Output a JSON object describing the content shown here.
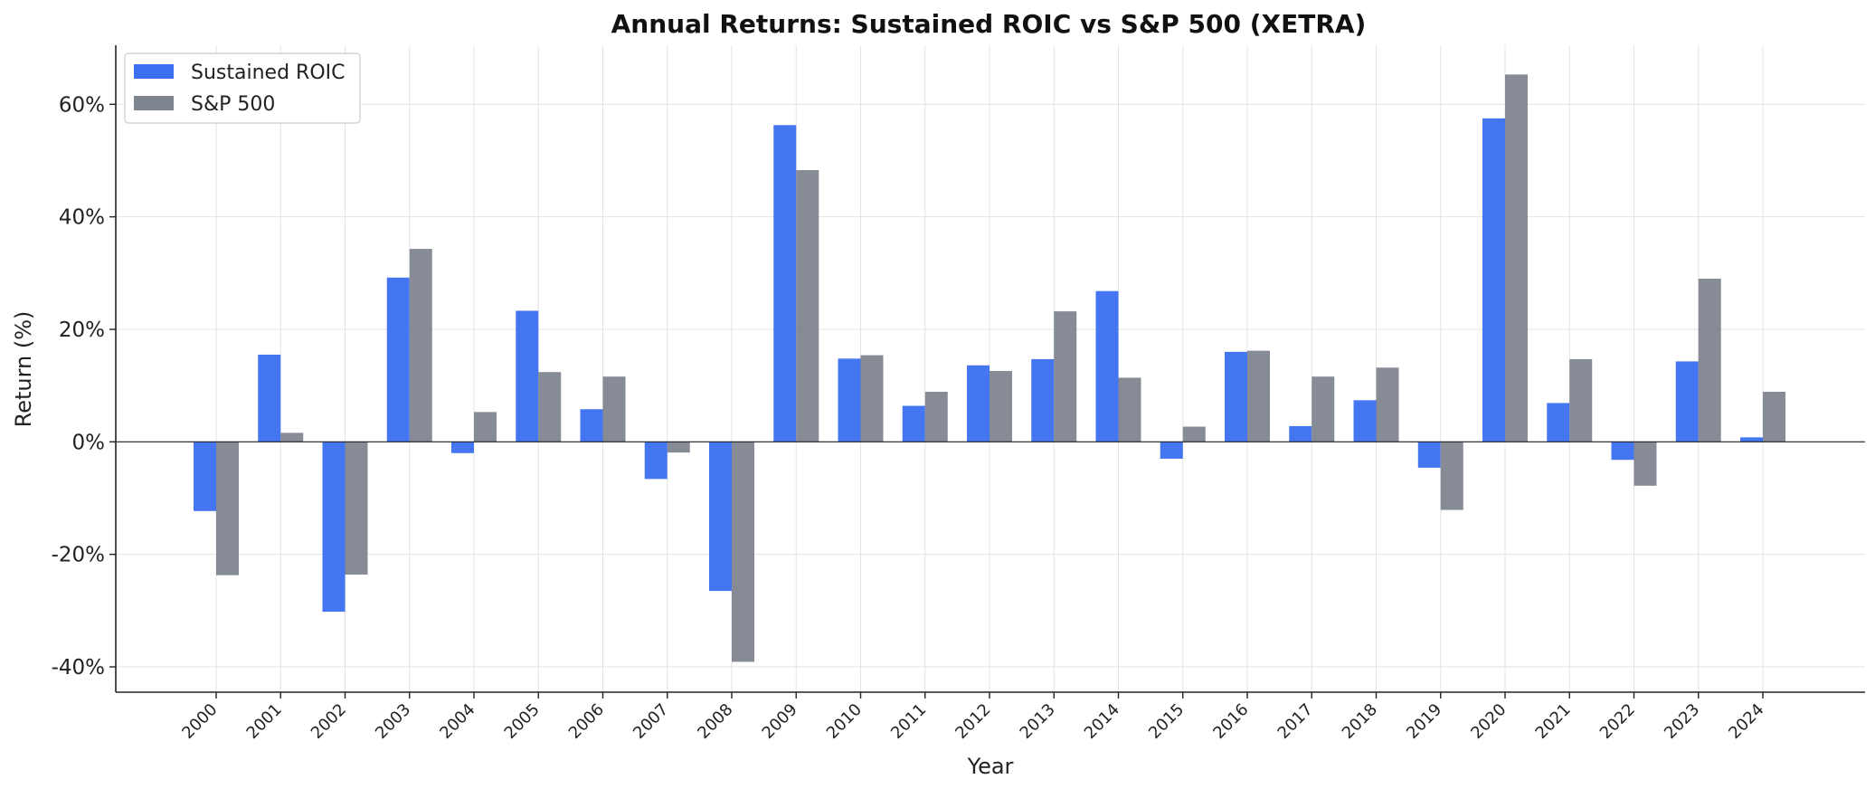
{
  "chart_data": {
    "type": "bar",
    "title": "Annual Returns: Sustained ROIC vs S&P 500 (XETRA)",
    "xlabel": "Year",
    "ylabel": "Return (%)",
    "categories": [
      "2000",
      "2001",
      "2002",
      "2003",
      "2004",
      "2005",
      "2006",
      "2007",
      "2008",
      "2009",
      "2010",
      "2011",
      "2012",
      "2013",
      "2014",
      "2015",
      "2016",
      "2017",
      "2018",
      "2019",
      "2020",
      "2021",
      "2022",
      "2023",
      "2024"
    ],
    "series": [
      {
        "name": "Sustained ROIC",
        "color": "#3b6ff0",
        "values": [
          -12.3,
          15.5,
          -30.2,
          29.2,
          -2.0,
          23.3,
          5.8,
          -6.6,
          -26.5,
          56.3,
          14.8,
          6.4,
          13.6,
          14.7,
          26.8,
          -3.0,
          16.0,
          2.8,
          7.4,
          -4.6,
          57.5,
          6.9,
          -3.2,
          14.3,
          0.8
        ]
      },
      {
        "name": "S&P 500",
        "color": "#7f8590",
        "values": [
          -23.7,
          1.6,
          -23.6,
          34.3,
          5.3,
          12.4,
          11.6,
          -1.9,
          -39.1,
          48.3,
          15.4,
          8.9,
          12.6,
          23.2,
          11.4,
          2.7,
          16.2,
          11.6,
          13.2,
          -12.1,
          65.3,
          14.7,
          -7.8,
          29.0,
          8.9
        ]
      }
    ],
    "yticks": [
      -40,
      -20,
      0,
      20,
      40,
      60
    ],
    "ytick_labels": [
      "-40%",
      "-20%",
      "0%",
      "20%",
      "40%",
      "60%"
    ],
    "ylim": [
      -44.5,
      70.5
    ],
    "grid": true,
    "legend": "top-left",
    "zero_line": true
  }
}
